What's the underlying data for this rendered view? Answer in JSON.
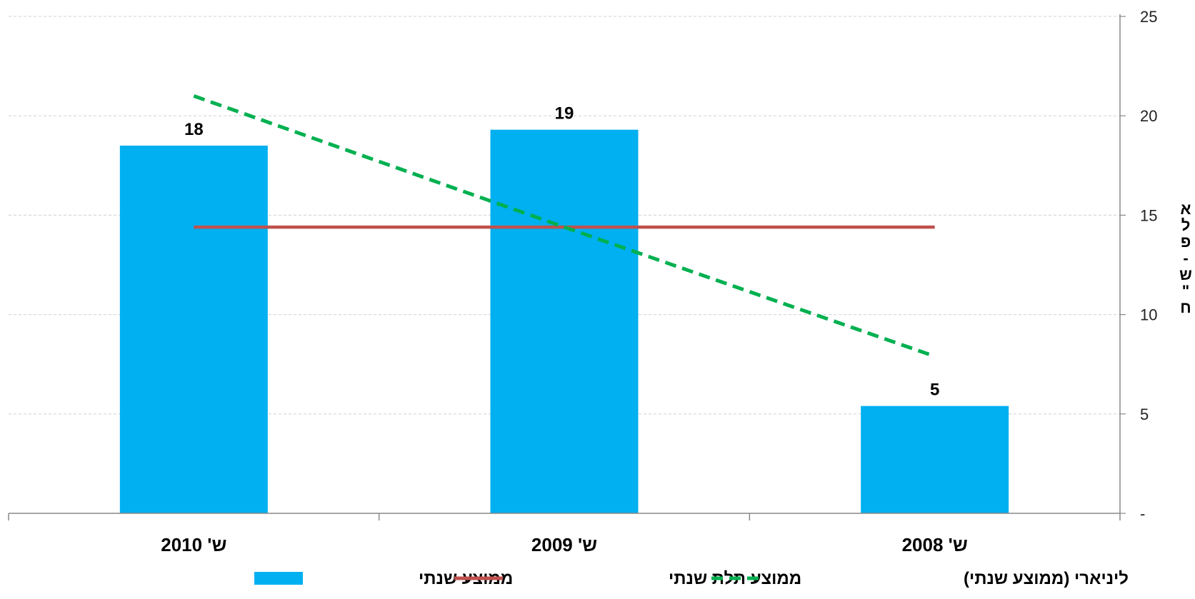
{
  "chart_data": {
    "type": "bar",
    "categories": [
      "ש' 2010",
      "ש' 2009",
      "ש' 2008"
    ],
    "series": [
      {
        "name": "ממוצע שנתי",
        "kind": "bar",
        "color": "#00B0F0",
        "values": [
          18.5,
          19.3,
          5.4
        ],
        "data_labels": [
          "18",
          "19",
          "5"
        ]
      },
      {
        "name": "ממוצע תלת שנתי",
        "kind": "line",
        "color": "#C0504D",
        "values": [
          14.4,
          14.4,
          14.4
        ]
      },
      {
        "name": "ליניארי (ממוצע שנתי)",
        "kind": "dashed-line",
        "color": "#00B050",
        "values": [
          21.0,
          14.4,
          7.9
        ]
      }
    ],
    "ylabel": "אלפי ש\"ח",
    "ylabel_chars": [
      "א",
      "ל",
      "פ",
      "-",
      "ש",
      "\"",
      "ח"
    ],
    "ylim": [
      0,
      25
    ],
    "yticks": [
      {
        "value": 0,
        "label": "-"
      },
      {
        "value": 5,
        "label": "5"
      },
      {
        "value": 10,
        "label": "10"
      },
      {
        "value": 15,
        "label": "15"
      },
      {
        "value": 20,
        "label": "20"
      },
      {
        "value": 25,
        "label": "25"
      }
    ],
    "y_axis_side": "right",
    "grid": true,
    "legend_position": "bottom"
  }
}
